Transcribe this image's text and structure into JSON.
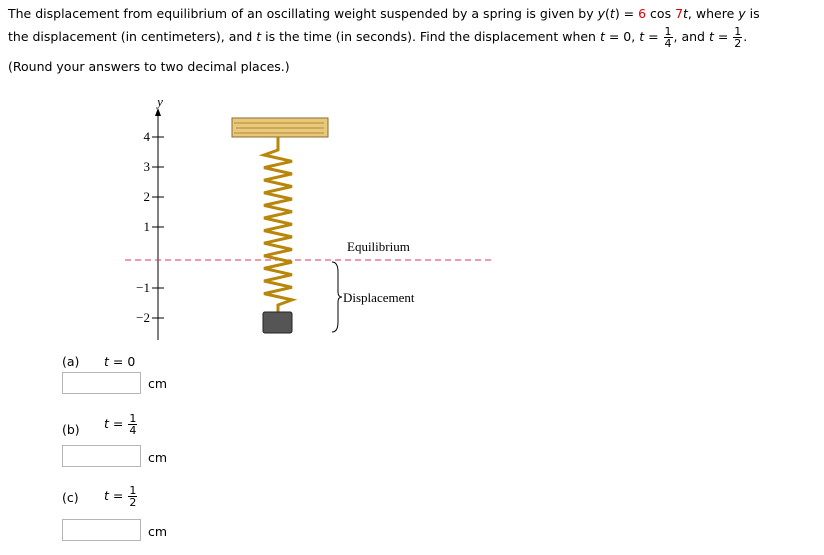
{
  "problem": {
    "line1": [
      "The displacement from equilibrium of an oscillating weight suspended by a spring is given by ",
      "y",
      "(",
      "t",
      ") = ",
      "6",
      " cos ",
      "7",
      "t",
      ", where ",
      "y",
      " is"
    ],
    "line2": [
      "the displacement (in centimeters), and ",
      "t",
      " is the time (in seconds). Find the displacement when ",
      "t",
      " = 0, ",
      "t",
      " = ",
      "1",
      "4",
      ", and ",
      "t",
      " = ",
      "1",
      "2",
      "."
    ],
    "note": "(Round your answers to two decimal places.)"
  },
  "figure": {
    "axis_label": "y",
    "ticks": [
      "4",
      "3",
      "2",
      "1",
      "−1",
      "−2"
    ],
    "equilibrium": "Equilibrium",
    "displacement": "Displacement"
  },
  "parts": [
    {
      "label": "(a)",
      "t": "t",
      "eq": "= 0",
      "unit": "cm"
    },
    {
      "label": "(b)",
      "t": "t",
      "eq": "=",
      "num": "1",
      "den": "4",
      "unit": "cm"
    },
    {
      "label": "(c)",
      "t": "t",
      "eq": "=",
      "num": "1",
      "den": "2",
      "unit": "cm"
    }
  ]
}
